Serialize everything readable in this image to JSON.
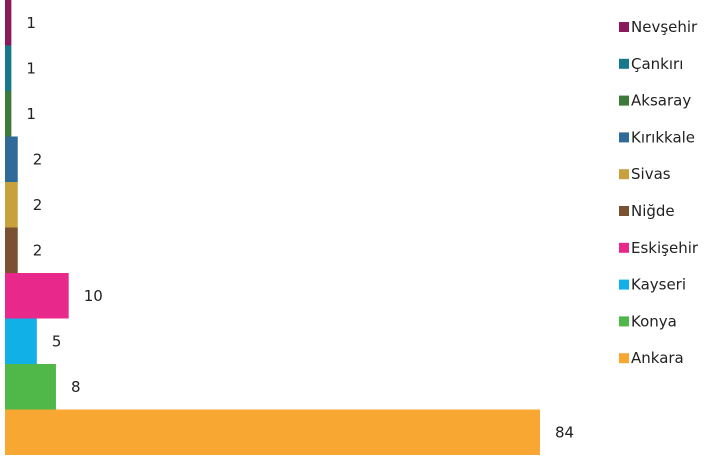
{
  "chart_data": {
    "type": "bar",
    "orientation": "horizontal",
    "title": "",
    "categories": [
      "Nevşehir",
      "Çankırı",
      "Aksaray",
      "Kırıkkale",
      "Sivas",
      "Niğde",
      "Eskişehir",
      "Kayseri",
      "Konya",
      "Ankara"
    ],
    "values": [
      1,
      1,
      1,
      2,
      2,
      2,
      10,
      5,
      8,
      84
    ],
    "colors": [
      "#8B1A5A",
      "#16788A",
      "#3C7A3A",
      "#2F6A98",
      "#C8A03E",
      "#7A5232",
      "#E8288A",
      "#11B1E8",
      "#4FB848",
      "#F9A733"
    ],
    "xlim": [
      0,
      84
    ],
    "grid": false,
    "legend_position": "right"
  }
}
